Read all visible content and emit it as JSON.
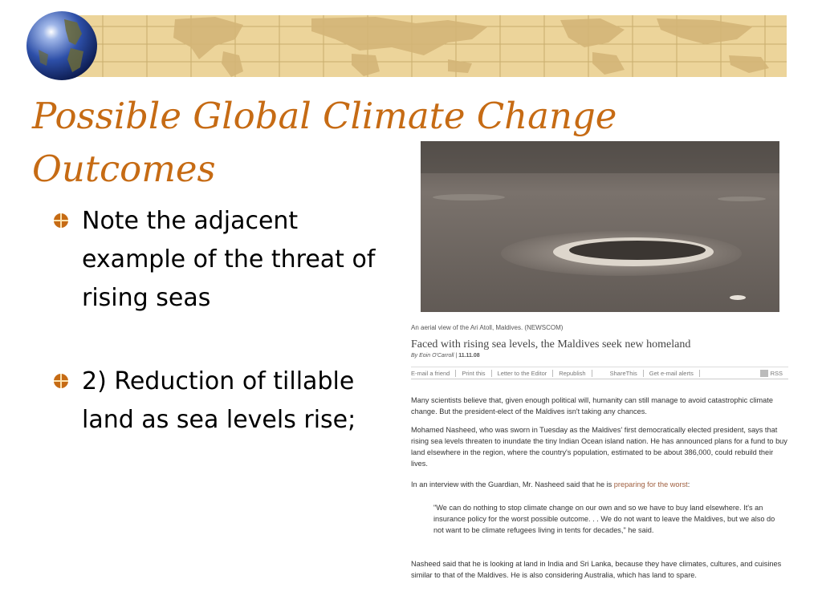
{
  "slide": {
    "title_line1": "Possible Global Climate Change",
    "title_line2": "Outcomes",
    "bullets": [
      "Note the adjacent example of the threat of rising seas",
      "2) Reduction of tillable land as sea levels rise;"
    ],
    "colors": {
      "title": "#c66b14",
      "banner": "#ecd49a",
      "bullet_mark": "#c66b14"
    },
    "icons": [
      "globe-icon",
      "world-map-banner",
      "bullet-diamond-icon"
    ]
  },
  "article": {
    "caption": "An aerial view of the Ari Atoll, Maldives. (NEWSCOM)",
    "headline": "Faced with rising sea levels, the Maldives seek new homeland",
    "byline": "By Eoin O'Carroll",
    "date": "11.11.08",
    "toolbar": [
      "E-mail a friend",
      "Print this",
      "Letter to the Editor",
      "Republish",
      "ShareThis",
      "Get e-mail alerts",
      "RSS"
    ],
    "p1": "Many scientists believe that, given enough political will, humanity can still manage to avoid catastrophic climate change. But the president-elect of the Maldives isn't taking any chances.",
    "p2": "Mohamed Nasheed, who was sworn in Tuesday as the Maldives' first democratically elected president, says that rising sea levels threaten to inundate the tiny Indian Ocean island nation. He has announced plans for a fund to buy land elsewhere in the region, where the country's population, estimated to be about 386,000, could rebuild their lives.",
    "p3_pre": "In an interview with the Guardian, Mr. Nasheed said that he is ",
    "p3_link": "preparing for the worst",
    "p3_post": ":",
    "quote": "\"We can do nothing to stop climate change on our own and so we have to buy land elsewhere. It's an insurance policy for the worst possible outcome. . . We do not want to leave the Maldives, but we also do not want to be climate refugees living in tents for decades,\" he said.",
    "p4": "Nasheed said that he is looking at land in India and Sri Lanka, because they have climates, cultures, and cuisines similar to that of the Maldives. He is also considering Australia, which has land to spare."
  }
}
